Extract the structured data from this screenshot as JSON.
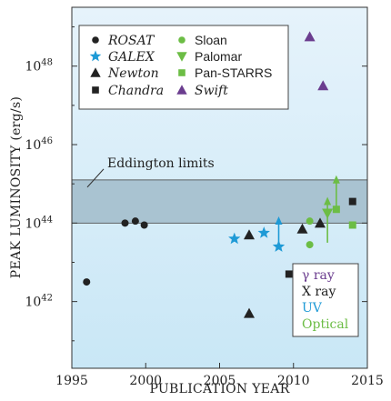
{
  "chart_data": {
    "type": "scatter",
    "title": "",
    "xlabel": "PUBLICATION YEAR",
    "ylabel": "PEAK LUMINOSITY (erg/s)",
    "xlim": [
      1995,
      2015
    ],
    "ylim_log10": [
      40.3,
      49.5
    ],
    "y_scale": "log",
    "x_ticks": [
      1995,
      2000,
      2005,
      2010,
      2015
    ],
    "y_ticks": [
      {
        "exp": 42,
        "base": "10",
        "power": "42"
      },
      {
        "exp": 44,
        "base": "10",
        "power": "44"
      },
      {
        "exp": 46,
        "base": "10",
        "power": "46"
      },
      {
        "exp": 48,
        "base": "10",
        "power": "48"
      }
    ],
    "eddington_band": {
      "label": "Eddington limits",
      "log_lo": 44.0,
      "log_hi": 45.1,
      "color": "#a9c3d1"
    },
    "legend": {
      "placement": "top-left",
      "entries": [
        {
          "id": "rosat",
          "name": "ROSAT",
          "marker": "circle",
          "color": "#222222",
          "italic": true
        },
        {
          "id": "sloan",
          "name": "Sloan",
          "marker": "circle",
          "color": "#6cbd45",
          "italic": false
        },
        {
          "id": "galex",
          "name": "GALEX",
          "marker": "star",
          "color": "#1e9ad6",
          "italic": true
        },
        {
          "id": "palomar",
          "name": "Palomar",
          "marker": "triangle-down",
          "color": "#6cbd45",
          "italic": false
        },
        {
          "id": "newton",
          "name": "Newton",
          "marker": "triangle",
          "color": "#222222",
          "italic": true
        },
        {
          "id": "panstarrs",
          "name": "Pan-STARRS",
          "marker": "square",
          "color": "#6cbd45",
          "italic": false
        },
        {
          "id": "chandra",
          "name": "Chandra",
          "marker": "square",
          "color": "#222222",
          "italic": true
        },
        {
          "id": "swift",
          "name": "Swift",
          "marker": "triangle",
          "color": "#6b3d8f",
          "italic": true
        }
      ]
    },
    "band_legend": {
      "placement": "bottom-right",
      "entries": [
        {
          "label": "γ ray",
          "color": "#6b3d8f"
        },
        {
          "label": "X ray",
          "color": "#222222"
        },
        {
          "label": "UV",
          "color": "#1e9ad6"
        },
        {
          "label": "Optical",
          "color": "#6cbd45"
        }
      ]
    },
    "series": [
      {
        "id": "rosat",
        "points": [
          [
            1996,
            42.5
          ],
          [
            1998.6,
            44.0
          ],
          [
            1999.3,
            44.05
          ],
          [
            1999.9,
            43.95
          ]
        ]
      },
      {
        "id": "galex",
        "points": [
          [
            2006,
            43.6
          ],
          [
            2008,
            43.75
          ],
          [
            2009,
            43.4
          ]
        ]
      },
      {
        "id": "newton",
        "points": [
          [
            2007,
            43.7
          ],
          [
            2007,
            41.7
          ],
          [
            2010.6,
            43.85
          ],
          [
            2011.8,
            44.0
          ]
        ]
      },
      {
        "id": "chandra",
        "points": [
          [
            2009.7,
            42.7
          ],
          [
            2014,
            44.55
          ]
        ]
      },
      {
        "id": "sloan",
        "points": [
          [
            2011.1,
            44.05
          ],
          [
            2011.1,
            43.45
          ]
        ]
      },
      {
        "id": "palomar",
        "points": [
          [
            2012.3,
            44.25
          ]
        ]
      },
      {
        "id": "panstarrs",
        "points": [
          [
            2012.9,
            44.35
          ],
          [
            2014,
            43.95
          ]
        ]
      },
      {
        "id": "swift",
        "points": [
          [
            2011.1,
            48.75
          ],
          [
            2012.0,
            47.5
          ]
        ]
      }
    ],
    "range_arrows": [
      {
        "x": 2009,
        "y_from": 43.4,
        "y_to": 44.1,
        "color": "#1e9ad6"
      },
      {
        "x": 2012.3,
        "y_from": 43.5,
        "y_to": 44.6,
        "color": "#6cbd45"
      },
      {
        "x": 2012.9,
        "y_from": 44.35,
        "y_to": 45.15,
        "color": "#6cbd45"
      }
    ]
  }
}
